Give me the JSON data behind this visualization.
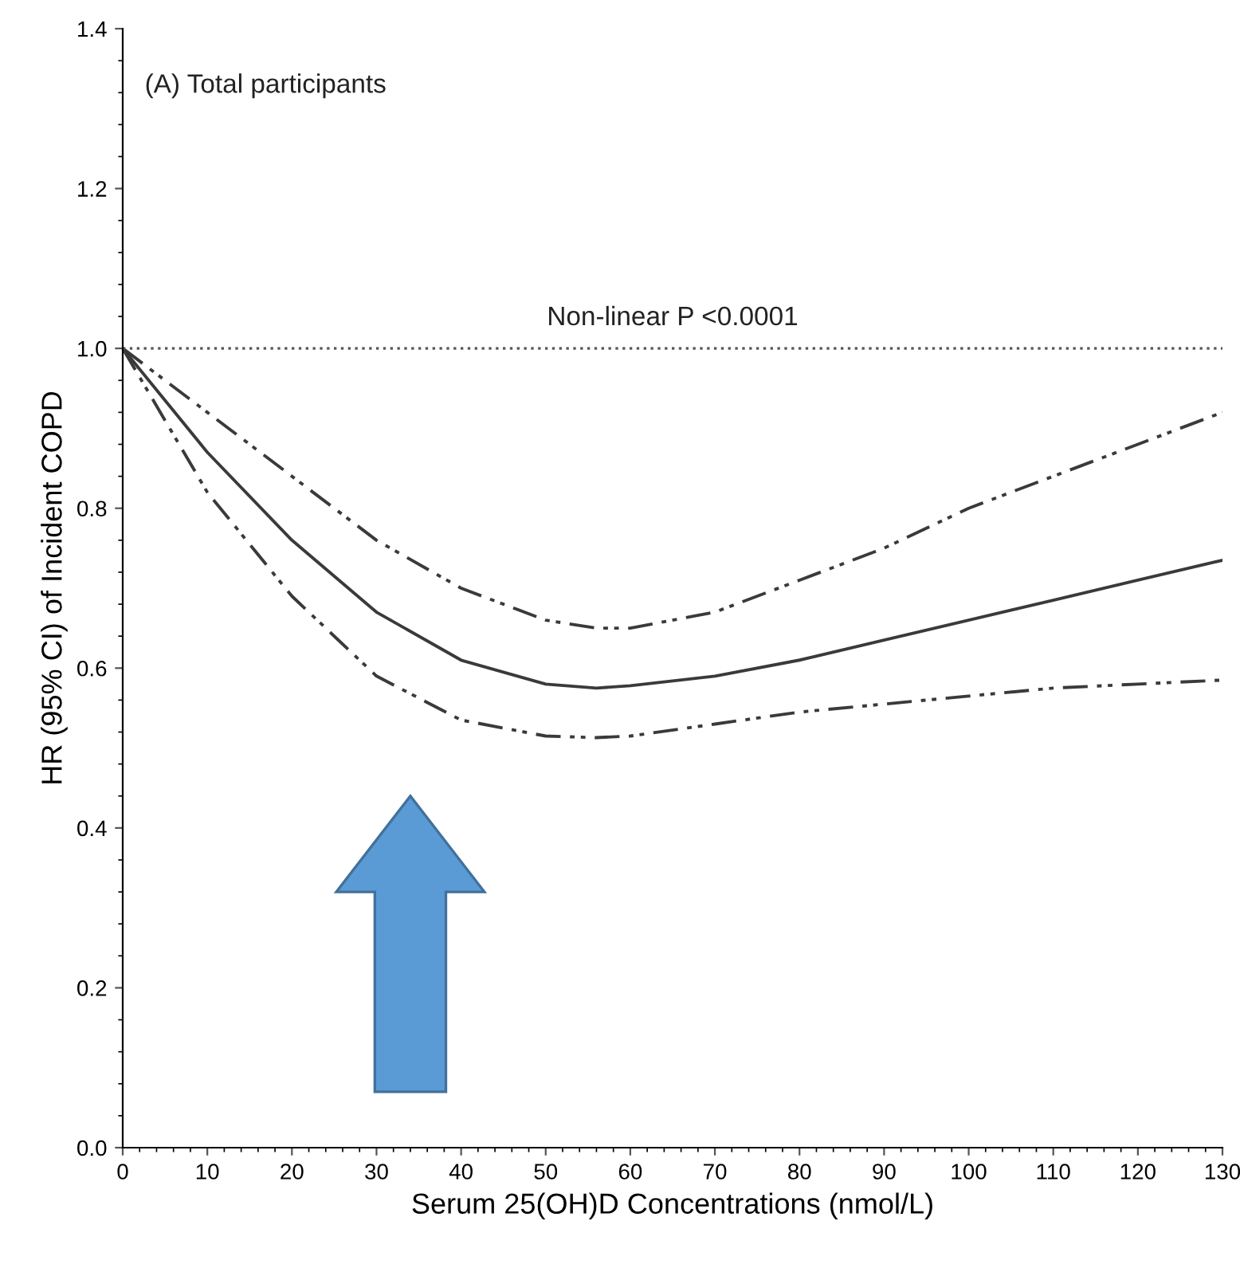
{
  "chart_data": {
    "type": "line",
    "title": "(A) Total participants",
    "xlabel": "Serum 25(OH)D Concentrations (nmol/L)",
    "ylabel": "HR (95% CI) of Incident COPD",
    "x": [
      0,
      10,
      20,
      30,
      40,
      50,
      56,
      60,
      70,
      80,
      90,
      100,
      110,
      120,
      130
    ],
    "series": [
      {
        "color": "#3a3a3a",
        "line_style": "solid",
        "values": [
          1.0,
          0.87,
          0.76,
          0.67,
          0.61,
          0.58,
          0.575,
          0.578,
          0.59,
          0.61,
          0.635,
          0.66,
          0.685,
          0.71,
          0.735
        ]
      },
      {
        "color": "#3a3a3a",
        "line_style": "dashed",
        "values": [
          1.0,
          0.92,
          0.84,
          0.76,
          0.7,
          0.66,
          0.65,
          0.65,
          0.67,
          0.71,
          0.75,
          0.8,
          0.84,
          0.88,
          0.92
        ]
      },
      {
        "color": "#3a3a3a",
        "line_style": "dashed",
        "values": [
          1.0,
          0.82,
          0.69,
          0.59,
          0.535,
          0.515,
          0.513,
          0.515,
          0.53,
          0.545,
          0.555,
          0.565,
          0.575,
          0.58,
          0.585
        ]
      }
    ],
    "xlim": [
      0,
      130
    ],
    "xticks": [
      0,
      10,
      20,
      30,
      40,
      50,
      60,
      70,
      80,
      90,
      100,
      110,
      120,
      130
    ],
    "ylim": [
      0,
      1.4
    ],
    "yticks": [
      {
        "value": 0,
        "label": "0.0"
      },
      0.2,
      0.4,
      0.6,
      0.8,
      {
        "value": 1,
        "label": "1.0"
      },
      1.2,
      1.4
    ],
    "ref_lines": [
      {
        "axis": "y",
        "value": 1.0,
        "line_style": "dotted",
        "color": "#555555"
      }
    ],
    "annotations": [
      {
        "text": "Non-linear P <0.0001",
        "x": 65,
        "y": 1.0
      }
    ],
    "grid": false,
    "legend": false,
    "marker": "none"
  }
}
